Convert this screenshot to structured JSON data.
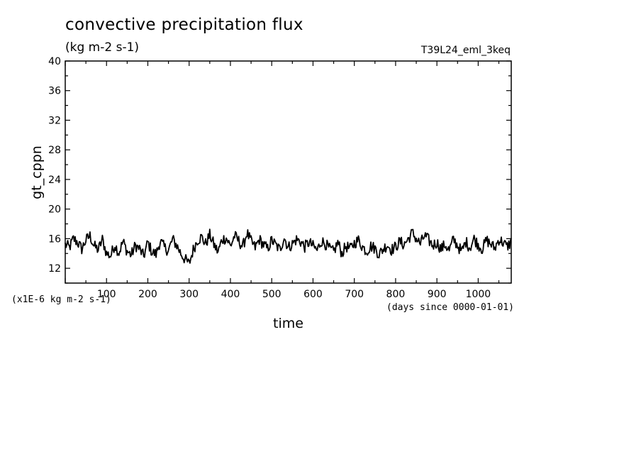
{
  "chart_data": {
    "type": "line",
    "title": "convective precipitation flux",
    "units": "(kg m-2 s-1)",
    "run_label": "T39L24_eml_3keq",
    "ylabel": "gt_cppn",
    "xlabel": "time",
    "y_scale_note": "(x1E-6 kg m-2 s-1)",
    "x_units_note": "(days since 0000-01-01)",
    "xlim": [
      0,
      1080
    ],
    "ylim": [
      10,
      40
    ],
    "x_ticks": [
      100,
      200,
      300,
      400,
      500,
      600,
      700,
      800,
      900,
      1000
    ],
    "y_ticks": [
      12,
      16,
      20,
      24,
      28,
      32,
      36,
      40
    ],
    "series": [
      {
        "values_approx": {
          "x_step": 10,
          "y": [
            15.2,
            14.8,
            16.0,
            15.5,
            14.6,
            15.8,
            16.4,
            15.0,
            14.5,
            15.9,
            14.0,
            13.7,
            15.2,
            14.1,
            15.6,
            14.3,
            13.8,
            15.1,
            14.6,
            13.6,
            15.5,
            14.2,
            13.9,
            15.7,
            14.8,
            14.4,
            15.9,
            15.1,
            14.0,
            13.2,
            12.6,
            14.5,
            15.8,
            16.2,
            15.3,
            16.5,
            15.2,
            14.2,
            15.9,
            16.1,
            15.0,
            16.4,
            15.7,
            14.9,
            16.8,
            15.6,
            14.8,
            15.9,
            15.2,
            14.6,
            15.8,
            15.1,
            14.5,
            16.2,
            14.8,
            15.3,
            15.9,
            15.6,
            14.9,
            15.5,
            15.0,
            14.4,
            15.7,
            15.3,
            14.6,
            14.2,
            15.5,
            14.0,
            15.0,
            14.6,
            15.4,
            15.8,
            14.9,
            14.3,
            15.0,
            14.7,
            13.9,
            14.6,
            15.2,
            14.5,
            14.9,
            15.6,
            15.2,
            15.9,
            16.8,
            16.0,
            15.3,
            16.4,
            15.8,
            15.1,
            15.5,
            14.6,
            15.2,
            14.4,
            15.9,
            15.1,
            14.2,
            15.6,
            14.8,
            16.0,
            15.2,
            14.6,
            15.8,
            15.3,
            14.7,
            15.9,
            15.5,
            14.9,
            15.6,
            15.1
          ]
        }
      }
    ]
  }
}
